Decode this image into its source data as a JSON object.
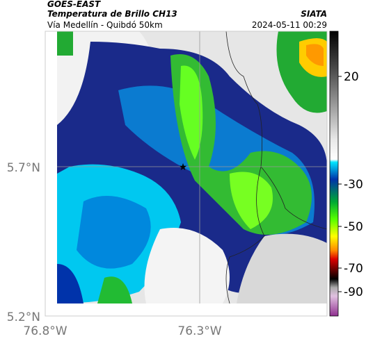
{
  "header": {
    "source": "GOES-EAST",
    "product": "Temperatura de Brillo CH13",
    "organization": "SIATA",
    "location": "Vía Medellín - Quibdó 50km",
    "timestamp": "2024-05-11 00:29"
  },
  "axes": {
    "latitude_labels": [
      "5.7°N",
      "5.2°N"
    ],
    "longitude_labels": [
      "76.8°W",
      "76.3°W"
    ]
  },
  "colorbar": {
    "ticks": [
      20,
      -30,
      -50,
      -70,
      -90
    ]
  }
}
